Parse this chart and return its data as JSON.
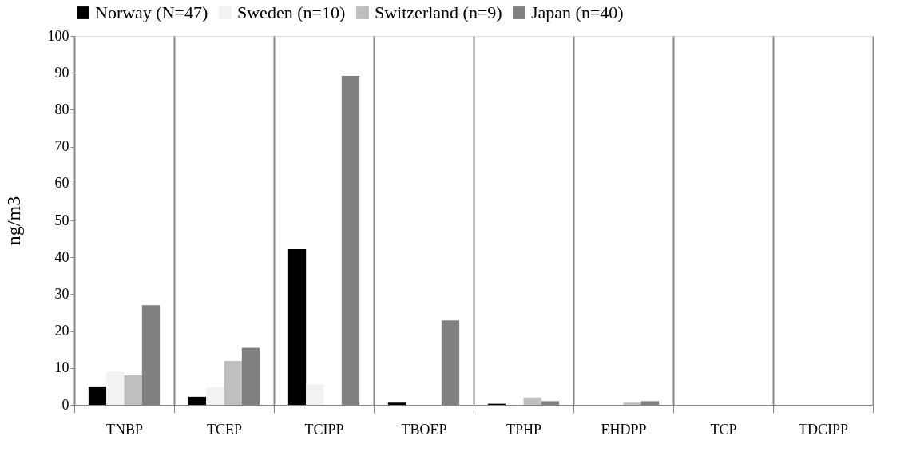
{
  "chart_data": {
    "type": "bar",
    "ylabel": "ng/m3",
    "categories": [
      "TNBP",
      "TCEP",
      "TCIPP",
      "TBOEP",
      "TPHP",
      "EHDPP",
      "TCP",
      "TDCIPP"
    ],
    "series": [
      {
        "name": "Norway (N=47)",
        "color": "#000000",
        "values": [
          5,
          2.2,
          42.2,
          0.6,
          0.3,
          0,
          0,
          0
        ]
      },
      {
        "name": "Sweden (n=10)",
        "color": "#f2f2f2",
        "values": [
          9,
          4.8,
          5.6,
          0,
          0,
          0,
          0,
          0
        ]
      },
      {
        "name": "Switzerland (n=9)",
        "color": "#bfbfbf",
        "values": [
          8,
          11.9,
          0,
          0,
          2,
          0.6,
          0,
          0
        ]
      },
      {
        "name": "Japan (n=40)",
        "color": "#808080",
        "values": [
          27,
          15.5,
          89.2,
          22.9,
          1,
          1,
          0,
          0
        ]
      }
    ],
    "ylim": [
      0,
      100
    ],
    "yticks": [
      0,
      10,
      20,
      30,
      40,
      50,
      60,
      70,
      80,
      90,
      100
    ],
    "grid": "x",
    "legend": "top"
  }
}
